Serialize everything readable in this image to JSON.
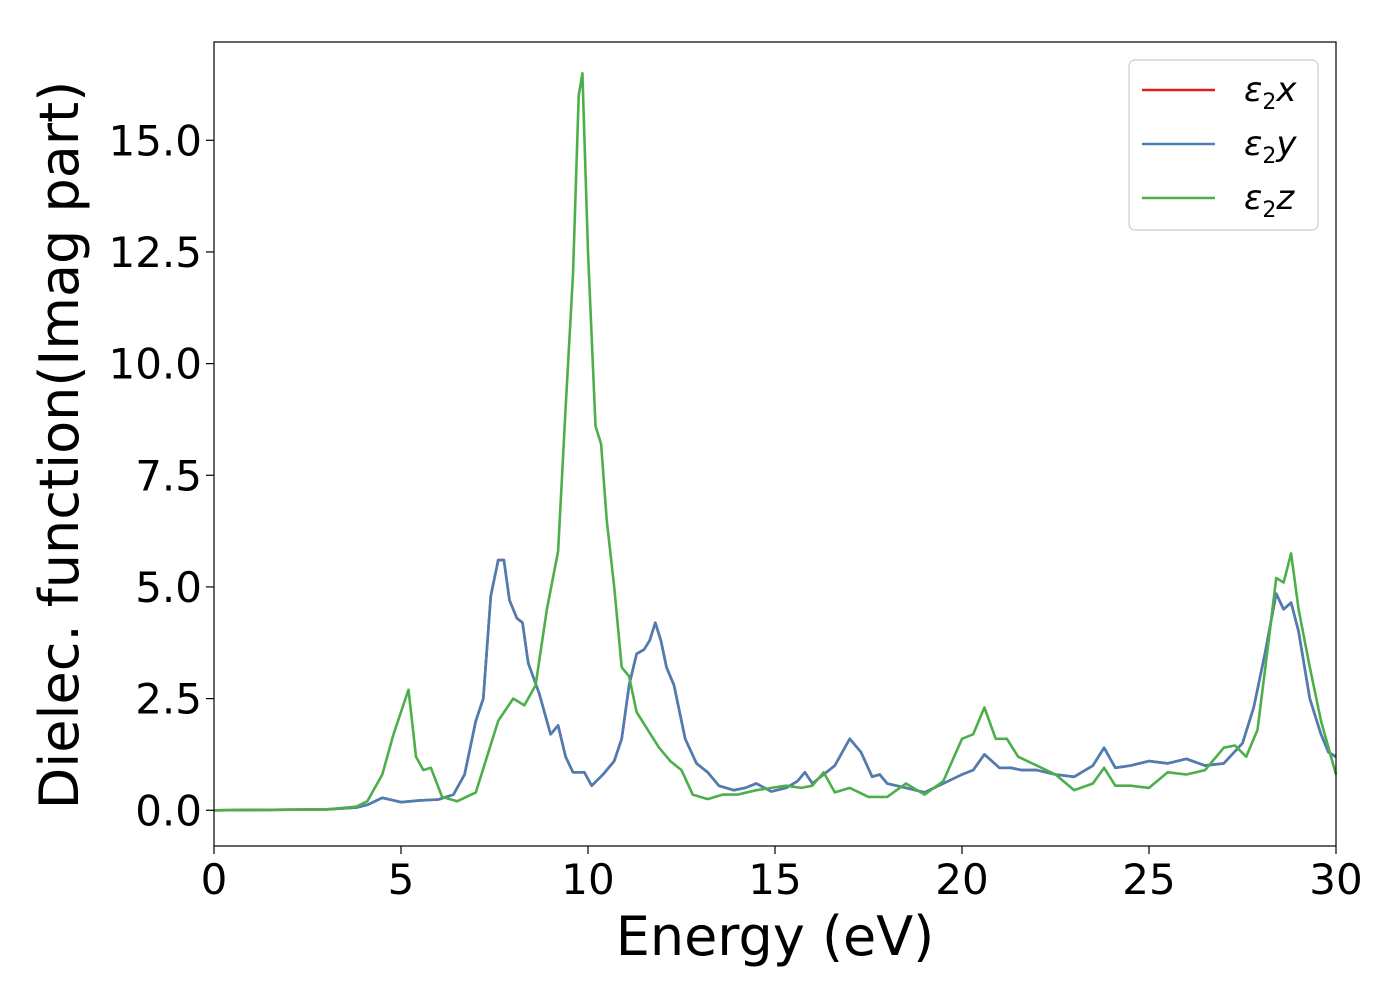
{
  "chart_data": {
    "type": "line",
    "title": "",
    "xlabel": "Energy (eV)",
    "ylabel": "Dielec. function(Imag part)",
    "xlim": [
      0,
      30
    ],
    "ylim": [
      -0.8,
      17.2
    ],
    "xticks": [
      0,
      5,
      10,
      15,
      20,
      25,
      30
    ],
    "xtick_labels": [
      "0",
      "5",
      "10",
      "15",
      "20",
      "25",
      "30"
    ],
    "yticks": [
      0.0,
      2.5,
      5.0,
      7.5,
      10.0,
      12.5,
      15.0
    ],
    "ytick_labels": [
      "0.0",
      "2.5",
      "5.0",
      "7.5",
      "10.0",
      "12.5",
      "15.0"
    ],
    "grid": false,
    "legend_position": "top-right",
    "series": [
      {
        "name": "ε2x",
        "name_base": "ε",
        "name_sub": "2",
        "name_var": "x",
        "color": "#e41a1c",
        "points": [
          [
            0,
            0
          ],
          [
            3,
            0.02
          ],
          [
            3.8,
            0.06
          ],
          [
            4.1,
            0.12
          ],
          [
            4.5,
            0.28
          ],
          [
            4.8,
            0.22
          ],
          [
            5.0,
            0.18
          ],
          [
            5.5,
            0.22
          ],
          [
            6.0,
            0.24
          ],
          [
            6.4,
            0.35
          ],
          [
            6.7,
            0.8
          ],
          [
            7.0,
            2.0
          ],
          [
            7.2,
            2.5
          ],
          [
            7.4,
            4.8
          ],
          [
            7.6,
            5.6
          ],
          [
            7.75,
            5.6
          ],
          [
            7.9,
            4.7
          ],
          [
            8.1,
            4.3
          ],
          [
            8.25,
            4.2
          ],
          [
            8.4,
            3.3
          ],
          [
            8.7,
            2.6
          ],
          [
            9.0,
            1.7
          ],
          [
            9.2,
            1.9
          ],
          [
            9.4,
            1.2
          ],
          [
            9.6,
            0.85
          ],
          [
            9.9,
            0.85
          ],
          [
            10.1,
            0.55
          ],
          [
            10.4,
            0.8
          ],
          [
            10.7,
            1.1
          ],
          [
            10.9,
            1.6
          ],
          [
            11.1,
            2.8
          ],
          [
            11.3,
            3.5
          ],
          [
            11.5,
            3.6
          ],
          [
            11.65,
            3.8
          ],
          [
            11.8,
            4.2
          ],
          [
            11.95,
            3.8
          ],
          [
            12.1,
            3.2
          ],
          [
            12.3,
            2.8
          ],
          [
            12.6,
            1.6
          ],
          [
            12.9,
            1.05
          ],
          [
            13.2,
            0.85
          ],
          [
            13.5,
            0.55
          ],
          [
            13.9,
            0.45
          ],
          [
            14.2,
            0.5
          ],
          [
            14.5,
            0.6
          ],
          [
            14.9,
            0.42
          ],
          [
            15.3,
            0.5
          ],
          [
            15.6,
            0.65
          ],
          [
            15.8,
            0.85
          ],
          [
            16.0,
            0.6
          ],
          [
            16.3,
            0.8
          ],
          [
            16.6,
            1.0
          ],
          [
            17.0,
            1.6
          ],
          [
            17.3,
            1.3
          ],
          [
            17.6,
            0.75
          ],
          [
            17.8,
            0.8
          ],
          [
            18.0,
            0.6
          ],
          [
            18.5,
            0.5
          ],
          [
            19.0,
            0.4
          ],
          [
            19.5,
            0.6
          ],
          [
            20.0,
            0.8
          ],
          [
            20.3,
            0.9
          ],
          [
            20.6,
            1.25
          ],
          [
            21.0,
            0.95
          ],
          [
            21.3,
            0.95
          ],
          [
            21.6,
            0.9
          ],
          [
            22.0,
            0.9
          ],
          [
            22.5,
            0.8
          ],
          [
            23.0,
            0.75
          ],
          [
            23.5,
            1.0
          ],
          [
            23.8,
            1.4
          ],
          [
            24.1,
            0.95
          ],
          [
            24.5,
            1.0
          ],
          [
            25.0,
            1.1
          ],
          [
            25.5,
            1.05
          ],
          [
            26.0,
            1.15
          ],
          [
            26.5,
            1.0
          ],
          [
            27.0,
            1.05
          ],
          [
            27.5,
            1.5
          ],
          [
            27.8,
            2.3
          ],
          [
            28.1,
            3.5
          ],
          [
            28.4,
            4.85
          ],
          [
            28.6,
            4.5
          ],
          [
            28.8,
            4.65
          ],
          [
            29.0,
            4.0
          ],
          [
            29.3,
            2.5
          ],
          [
            29.6,
            1.7
          ],
          [
            29.8,
            1.3
          ],
          [
            30.0,
            1.2
          ]
        ]
      },
      {
        "name": "ε2y",
        "name_base": "ε",
        "name_sub": "2",
        "name_var": "y",
        "color": "#4a7fb5",
        "points": [
          [
            0,
            0
          ],
          [
            3,
            0.02
          ],
          [
            3.8,
            0.06
          ],
          [
            4.1,
            0.12
          ],
          [
            4.5,
            0.28
          ],
          [
            4.8,
            0.22
          ],
          [
            5.0,
            0.18
          ],
          [
            5.5,
            0.22
          ],
          [
            6.0,
            0.24
          ],
          [
            6.4,
            0.35
          ],
          [
            6.7,
            0.8
          ],
          [
            7.0,
            2.0
          ],
          [
            7.2,
            2.5
          ],
          [
            7.4,
            4.8
          ],
          [
            7.6,
            5.6
          ],
          [
            7.75,
            5.6
          ],
          [
            7.9,
            4.7
          ],
          [
            8.1,
            4.3
          ],
          [
            8.25,
            4.2
          ],
          [
            8.4,
            3.3
          ],
          [
            8.7,
            2.6
          ],
          [
            9.0,
            1.7
          ],
          [
            9.2,
            1.9
          ],
          [
            9.4,
            1.2
          ],
          [
            9.6,
            0.85
          ],
          [
            9.9,
            0.85
          ],
          [
            10.1,
            0.55
          ],
          [
            10.4,
            0.8
          ],
          [
            10.7,
            1.1
          ],
          [
            10.9,
            1.6
          ],
          [
            11.1,
            2.8
          ],
          [
            11.3,
            3.5
          ],
          [
            11.5,
            3.6
          ],
          [
            11.65,
            3.8
          ],
          [
            11.8,
            4.2
          ],
          [
            11.95,
            3.8
          ],
          [
            12.1,
            3.2
          ],
          [
            12.3,
            2.8
          ],
          [
            12.6,
            1.6
          ],
          [
            12.9,
            1.05
          ],
          [
            13.2,
            0.85
          ],
          [
            13.5,
            0.55
          ],
          [
            13.9,
            0.45
          ],
          [
            14.2,
            0.5
          ],
          [
            14.5,
            0.6
          ],
          [
            14.9,
            0.42
          ],
          [
            15.3,
            0.5
          ],
          [
            15.6,
            0.65
          ],
          [
            15.8,
            0.85
          ],
          [
            16.0,
            0.6
          ],
          [
            16.3,
            0.8
          ],
          [
            16.6,
            1.0
          ],
          [
            17.0,
            1.6
          ],
          [
            17.3,
            1.3
          ],
          [
            17.6,
            0.75
          ],
          [
            17.8,
            0.8
          ],
          [
            18.0,
            0.6
          ],
          [
            18.5,
            0.5
          ],
          [
            19.0,
            0.4
          ],
          [
            19.5,
            0.6
          ],
          [
            20.0,
            0.8
          ],
          [
            20.3,
            0.9
          ],
          [
            20.6,
            1.25
          ],
          [
            21.0,
            0.95
          ],
          [
            21.3,
            0.95
          ],
          [
            21.6,
            0.9
          ],
          [
            22.0,
            0.9
          ],
          [
            22.5,
            0.8
          ],
          [
            23.0,
            0.75
          ],
          [
            23.5,
            1.0
          ],
          [
            23.8,
            1.4
          ],
          [
            24.1,
            0.95
          ],
          [
            24.5,
            1.0
          ],
          [
            25.0,
            1.1
          ],
          [
            25.5,
            1.05
          ],
          [
            26.0,
            1.15
          ],
          [
            26.5,
            1.0
          ],
          [
            27.0,
            1.05
          ],
          [
            27.5,
            1.5
          ],
          [
            27.8,
            2.3
          ],
          [
            28.1,
            3.5
          ],
          [
            28.4,
            4.85
          ],
          [
            28.6,
            4.5
          ],
          [
            28.8,
            4.65
          ],
          [
            29.0,
            4.0
          ],
          [
            29.3,
            2.5
          ],
          [
            29.6,
            1.7
          ],
          [
            29.8,
            1.3
          ],
          [
            30.0,
            1.2
          ]
        ]
      },
      {
        "name": "ε2z",
        "name_base": "ε",
        "name_sub": "2",
        "name_var": "z",
        "color": "#4daf4a",
        "points": [
          [
            0,
            0
          ],
          [
            3,
            0.02
          ],
          [
            3.8,
            0.08
          ],
          [
            4.1,
            0.2
          ],
          [
            4.5,
            0.8
          ],
          [
            4.8,
            1.7
          ],
          [
            5.0,
            2.2
          ],
          [
            5.2,
            2.7
          ],
          [
            5.4,
            1.2
          ],
          [
            5.6,
            0.9
          ],
          [
            5.8,
            0.95
          ],
          [
            6.1,
            0.3
          ],
          [
            6.5,
            0.2
          ],
          [
            7.0,
            0.4
          ],
          [
            7.3,
            1.2
          ],
          [
            7.6,
            2.0
          ],
          [
            8.0,
            2.5
          ],
          [
            8.3,
            2.35
          ],
          [
            8.6,
            2.8
          ],
          [
            8.9,
            4.5
          ],
          [
            9.2,
            5.8
          ],
          [
            9.4,
            9.0
          ],
          [
            9.6,
            12.0
          ],
          [
            9.75,
            16.0
          ],
          [
            9.85,
            16.5
          ],
          [
            10.0,
            12.5
          ],
          [
            10.2,
            8.6
          ],
          [
            10.35,
            8.2
          ],
          [
            10.5,
            6.5
          ],
          [
            10.7,
            5.0
          ],
          [
            10.9,
            3.2
          ],
          [
            11.1,
            3.0
          ],
          [
            11.3,
            2.2
          ],
          [
            11.6,
            1.8
          ],
          [
            11.9,
            1.4
          ],
          [
            12.2,
            1.1
          ],
          [
            12.5,
            0.9
          ],
          [
            12.8,
            0.35
          ],
          [
            13.2,
            0.25
          ],
          [
            13.6,
            0.35
          ],
          [
            14.0,
            0.35
          ],
          [
            14.5,
            0.45
          ],
          [
            14.9,
            0.5
          ],
          [
            15.3,
            0.55
          ],
          [
            15.7,
            0.5
          ],
          [
            16.0,
            0.55
          ],
          [
            16.3,
            0.85
          ],
          [
            16.6,
            0.4
          ],
          [
            17.0,
            0.5
          ],
          [
            17.5,
            0.3
          ],
          [
            18.0,
            0.3
          ],
          [
            18.5,
            0.6
          ],
          [
            19.0,
            0.35
          ],
          [
            19.5,
            0.65
          ],
          [
            20.0,
            1.6
          ],
          [
            20.3,
            1.7
          ],
          [
            20.6,
            2.3
          ],
          [
            20.9,
            1.6
          ],
          [
            21.2,
            1.6
          ],
          [
            21.5,
            1.2
          ],
          [
            22.0,
            1.0
          ],
          [
            22.5,
            0.8
          ],
          [
            23.0,
            0.45
          ],
          [
            23.5,
            0.6
          ],
          [
            23.8,
            0.95
          ],
          [
            24.1,
            0.55
          ],
          [
            24.5,
            0.55
          ],
          [
            25.0,
            0.5
          ],
          [
            25.5,
            0.85
          ],
          [
            26.0,
            0.8
          ],
          [
            26.5,
            0.9
          ],
          [
            27.0,
            1.4
          ],
          [
            27.3,
            1.45
          ],
          [
            27.6,
            1.2
          ],
          [
            27.9,
            1.8
          ],
          [
            28.2,
            3.8
          ],
          [
            28.4,
            5.2
          ],
          [
            28.6,
            5.1
          ],
          [
            28.8,
            5.75
          ],
          [
            29.0,
            4.5
          ],
          [
            29.3,
            3.2
          ],
          [
            29.6,
            2.0
          ],
          [
            30.0,
            0.8
          ]
        ]
      }
    ]
  }
}
